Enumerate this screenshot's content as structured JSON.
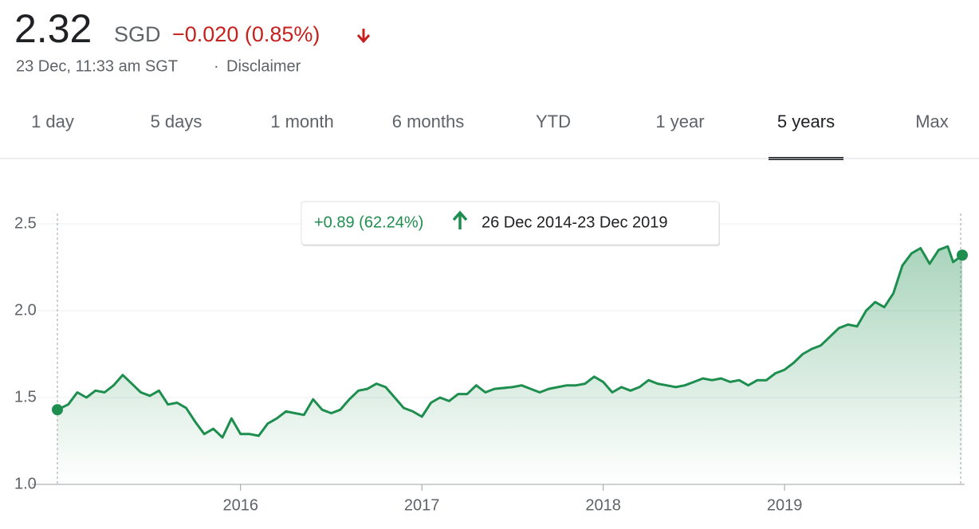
{
  "quote": {
    "price": "2.32",
    "currency": "SGD",
    "change": "−0.020 (0.85%)",
    "timestamp": "23 Dec, 11:33 am SGT",
    "separator": "·",
    "disclaimer": "Disclaimer"
  },
  "tabs": [
    "1 day",
    "5 days",
    "1 month",
    "6 months",
    "YTD",
    "1 year",
    "5 years",
    "Max"
  ],
  "active_tab": 6,
  "chart_data": {
    "type": "area",
    "annotation": "+0.89 (62.24%)",
    "range_label": "26 Dec 2014-23 Dec 2019",
    "color": "#1e8e4e",
    "x": [
      2014.99,
      2015.05,
      2015.1,
      2015.15,
      2015.2,
      2015.25,
      2015.3,
      2015.35,
      2015.4,
      2015.45,
      2015.5,
      2015.55,
      2015.6,
      2015.65,
      2015.7,
      2015.75,
      2015.8,
      2015.85,
      2015.9,
      2015.95,
      2016.0,
      2016.05,
      2016.1,
      2016.15,
      2016.2,
      2016.25,
      2016.3,
      2016.35,
      2016.4,
      2016.45,
      2016.5,
      2016.55,
      2016.6,
      2016.65,
      2016.7,
      2016.75,
      2016.8,
      2016.85,
      2016.9,
      2016.95,
      2017.0,
      2017.05,
      2017.1,
      2017.15,
      2017.2,
      2017.25,
      2017.3,
      2017.35,
      2017.4,
      2017.5,
      2017.55,
      2017.6,
      2017.65,
      2017.7,
      2017.75,
      2017.8,
      2017.85,
      2017.9,
      2017.95,
      2018.0,
      2018.05,
      2018.1,
      2018.15,
      2018.2,
      2018.25,
      2018.3,
      2018.35,
      2018.4,
      2018.45,
      2018.5,
      2018.55,
      2018.6,
      2018.65,
      2018.7,
      2018.75,
      2018.8,
      2018.85,
      2018.9,
      2018.95,
      2019.0,
      2019.05,
      2019.1,
      2019.15,
      2019.2,
      2019.25,
      2019.3,
      2019.35,
      2019.4,
      2019.45,
      2019.5,
      2019.55,
      2019.6,
      2019.65,
      2019.7,
      2019.75,
      2019.8,
      2019.85,
      2019.9,
      2019.93,
      2019.98
    ],
    "values": [
      1.43,
      1.46,
      1.53,
      1.5,
      1.54,
      1.53,
      1.57,
      1.63,
      1.58,
      1.53,
      1.51,
      1.54,
      1.46,
      1.47,
      1.44,
      1.36,
      1.29,
      1.32,
      1.27,
      1.38,
      1.29,
      1.29,
      1.28,
      1.35,
      1.38,
      1.42,
      1.41,
      1.4,
      1.49,
      1.43,
      1.41,
      1.43,
      1.49,
      1.54,
      1.55,
      1.58,
      1.56,
      1.5,
      1.44,
      1.42,
      1.39,
      1.47,
      1.5,
      1.48,
      1.52,
      1.52,
      1.57,
      1.53,
      1.55,
      1.56,
      1.57,
      1.55,
      1.53,
      1.55,
      1.56,
      1.57,
      1.57,
      1.58,
      1.62,
      1.59,
      1.53,
      1.56,
      1.54,
      1.56,
      1.6,
      1.58,
      1.57,
      1.56,
      1.57,
      1.59,
      1.61,
      1.6,
      1.61,
      1.59,
      1.6,
      1.57,
      1.6,
      1.6,
      1.64,
      1.66,
      1.7,
      1.75,
      1.78,
      1.8,
      1.85,
      1.9,
      1.92,
      1.91,
      2.0,
      2.05,
      2.02,
      2.1,
      2.26,
      2.33,
      2.36,
      2.27,
      2.35,
      2.37,
      2.28,
      2.32
    ],
    "xlim": [
      2014.99,
      2019.98
    ],
    "xticks": [
      2016,
      2017,
      2018,
      2019
    ],
    "ylim": [
      1.0,
      2.5
    ],
    "yticks": [
      {
        "value": 1.0,
        "label": "1.0"
      },
      1.5,
      {
        "value": 2.0,
        "label": "2.0"
      },
      2.5
    ],
    "grid": true
  }
}
